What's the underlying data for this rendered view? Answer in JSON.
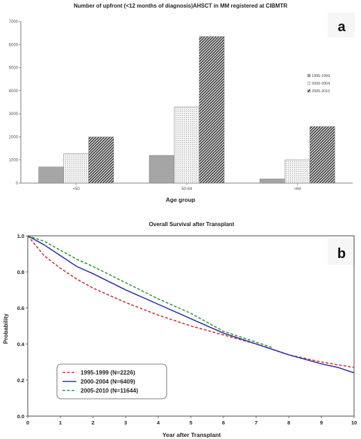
{
  "chart_data": [
    {
      "type": "bar",
      "panel_label": "a",
      "title": "Number of upfront (<12 months of diagnosis)AHSCT in MM registered at CIBMTR",
      "xlabel": "Age group",
      "ylabel": "",
      "categories": [
        "<50",
        "50-64",
        ">64"
      ],
      "ylim": [
        0,
        7000
      ],
      "yticks": [
        0,
        1000,
        2000,
        3000,
        4000,
        5000,
        6000,
        7000
      ],
      "legend_position": "right",
      "grid": false,
      "series": [
        {
          "name": "1995-1999",
          "values": [
            700,
            1200,
            180
          ],
          "color": "#a8a8a8"
        },
        {
          "name": "2000-2004",
          "values": [
            1280,
            3300,
            1000
          ],
          "color": "#eeeeee"
        },
        {
          "name": "2005-2010",
          "values": [
            2000,
            6350,
            2450
          ],
          "color": "#3a3a3a"
        }
      ]
    },
    {
      "type": "line",
      "panel_label": "b",
      "title": "Overall Survival after Transplant",
      "xlabel": "Year after Transplant",
      "ylabel": "Probability",
      "xlim": [
        0,
        10
      ],
      "ylim": [
        0,
        1
      ],
      "xticks": [
        0,
        1,
        2,
        3,
        4,
        5,
        6,
        7,
        8,
        9,
        10
      ],
      "yticks": [
        "0.0",
        "0.2",
        "0.4",
        "0.6",
        "0.8",
        "1.0"
      ],
      "legend_position": "bottom-left",
      "grid": false,
      "series": [
        {
          "name": "1995-1999 (N=2226)",
          "color": "#cc3333",
          "dash": "dashed",
          "x": [
            0,
            0.5,
            1,
            1.5,
            2,
            3,
            4,
            5,
            6,
            7,
            8,
            9,
            10
          ],
          "y": [
            1.0,
            0.89,
            0.82,
            0.76,
            0.71,
            0.63,
            0.56,
            0.5,
            0.45,
            0.4,
            0.34,
            0.3,
            0.27
          ]
        },
        {
          "name": "2000-2004 (N=6409)",
          "color": "#3535a8",
          "dash": "solid",
          "x": [
            0,
            0.5,
            1,
            1.5,
            2,
            3,
            4,
            5,
            6,
            7,
            8,
            9,
            9.5,
            10
          ],
          "y": [
            1.0,
            0.95,
            0.89,
            0.83,
            0.79,
            0.7,
            0.62,
            0.54,
            0.46,
            0.4,
            0.34,
            0.29,
            0.27,
            0.24
          ]
        },
        {
          "name": "2005-2010 (N=11644)",
          "color": "#2e9a3a",
          "dash": "dashed",
          "x": [
            0,
            0.5,
            1,
            1.5,
            2,
            3,
            4,
            5,
            5.5,
            6,
            7,
            7.5
          ],
          "y": [
            1.0,
            0.97,
            0.92,
            0.87,
            0.83,
            0.74,
            0.65,
            0.57,
            0.52,
            0.47,
            0.41,
            0.38
          ]
        }
      ]
    }
  ]
}
